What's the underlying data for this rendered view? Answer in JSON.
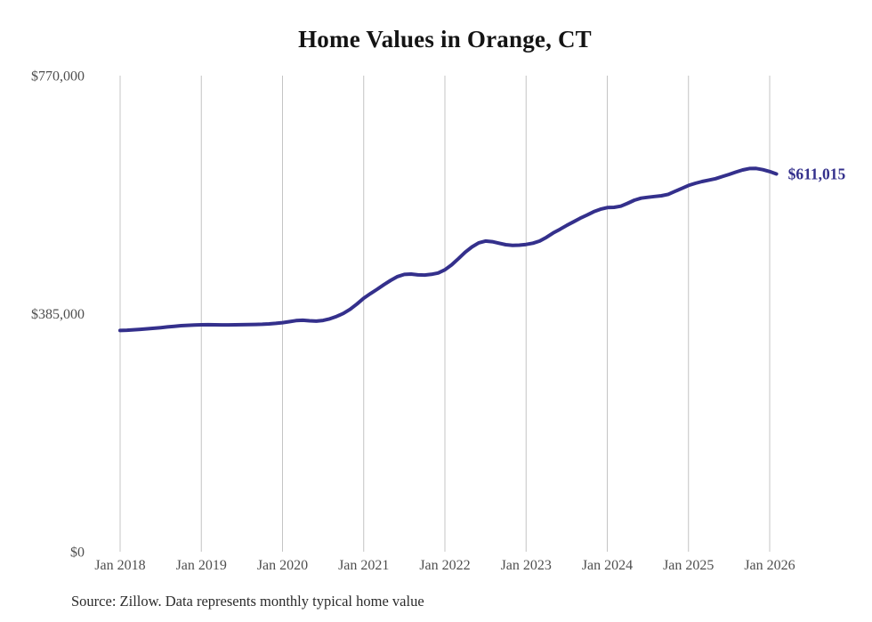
{
  "page": {
    "title": "Home Values in Orange, CT",
    "source_note": "Source: Zillow. Data represents monthly typical home value"
  },
  "colors": {
    "background": "#ffffff",
    "line": "#34308c",
    "annotation": "#34308c",
    "grid": "#c4c4c4",
    "tick_label": "#4f4f4f",
    "title": "#141414",
    "source": "#2b2b2b"
  },
  "chart_data": {
    "type": "line",
    "title": "Home Values in Orange, CT",
    "unit": "USD",
    "grid": "vertical",
    "legend": "none",
    "ylim": [
      0,
      770000
    ],
    "y_ticks": [
      {
        "value": 770000,
        "label": "$770,000"
      },
      {
        "value": 385000,
        "label": "$385,000"
      },
      {
        "value": 0,
        "label": "$0"
      }
    ],
    "x_ticks": [
      {
        "month_index": 0,
        "label": "Jan 2018"
      },
      {
        "month_index": 12,
        "label": "Jan 2019"
      },
      {
        "month_index": 24,
        "label": "Jan 2020"
      },
      {
        "month_index": 36,
        "label": "Jan 2021"
      },
      {
        "month_index": 48,
        "label": "Jan 2022"
      },
      {
        "month_index": 60,
        "label": "Jan 2023"
      },
      {
        "month_index": 72,
        "label": "Jan 2024"
      },
      {
        "month_index": 84,
        "label": "Jan 2025"
      },
      {
        "month_index": 96,
        "label": "Jan 2026"
      }
    ],
    "x": [
      "2018-01",
      "2018-02",
      "2018-03",
      "2018-04",
      "2018-05",
      "2018-06",
      "2018-07",
      "2018-08",
      "2018-09",
      "2018-10",
      "2018-11",
      "2018-12",
      "2019-01",
      "2019-02",
      "2019-03",
      "2019-04",
      "2019-05",
      "2019-06",
      "2019-07",
      "2019-08",
      "2019-09",
      "2019-10",
      "2019-11",
      "2019-12",
      "2020-01",
      "2020-02",
      "2020-03",
      "2020-04",
      "2020-05",
      "2020-06",
      "2020-07",
      "2020-08",
      "2020-09",
      "2020-10",
      "2020-11",
      "2020-12",
      "2021-01",
      "2021-02",
      "2021-03",
      "2021-04",
      "2021-05",
      "2021-06",
      "2021-07",
      "2021-08",
      "2021-09",
      "2021-10",
      "2021-11",
      "2021-12",
      "2022-01",
      "2022-02",
      "2022-03",
      "2022-04",
      "2022-05",
      "2022-06",
      "2022-07",
      "2022-08",
      "2022-09",
      "2022-10",
      "2022-11",
      "2022-12",
      "2023-01",
      "2023-02",
      "2023-03",
      "2023-04",
      "2023-05",
      "2023-06",
      "2023-07",
      "2023-08",
      "2023-09",
      "2023-10",
      "2023-11",
      "2023-12",
      "2024-01",
      "2024-02",
      "2024-03",
      "2024-04",
      "2024-05",
      "2024-06",
      "2024-07",
      "2024-08",
      "2024-09",
      "2024-10",
      "2024-11",
      "2024-12",
      "2025-01",
      "2025-02",
      "2025-03",
      "2025-04",
      "2025-05",
      "2025-06",
      "2025-07",
      "2025-08",
      "2025-09",
      "2025-10",
      "2025-11",
      "2025-12",
      "2026-01",
      "2026-02"
    ],
    "values": [
      357800,
      358300,
      358900,
      359600,
      360500,
      361400,
      362400,
      363500,
      364600,
      365500,
      366200,
      366700,
      367000,
      367100,
      367000,
      366900,
      366900,
      367000,
      367200,
      367400,
      367600,
      367900,
      368400,
      369300,
      370400,
      372000,
      373800,
      374300,
      373500,
      372900,
      374000,
      376600,
      380500,
      385500,
      392000,
      400500,
      410000,
      417500,
      424600,
      432000,
      439000,
      445000,
      448500,
      449000,
      447800,
      447500,
      448600,
      450800,
      456000,
      464000,
      474000,
      484500,
      493000,
      499500,
      502500,
      501500,
      499000,
      496500,
      495500,
      495800,
      497000,
      499000,
      502500,
      508500,
      515500,
      521500,
      527800,
      533500,
      539500,
      544500,
      550000,
      554000,
      556500,
      557000,
      558800,
      563500,
      568500,
      571800,
      573300,
      574600,
      575700,
      578000,
      582800,
      587500,
      592400,
      595800,
      598700,
      601000,
      603400,
      606800,
      610200,
      614000,
      617400,
      619800,
      619900,
      617800,
      614800,
      611015
    ],
    "annotation": {
      "label": "$611,015",
      "attach": "last-point"
    }
  }
}
